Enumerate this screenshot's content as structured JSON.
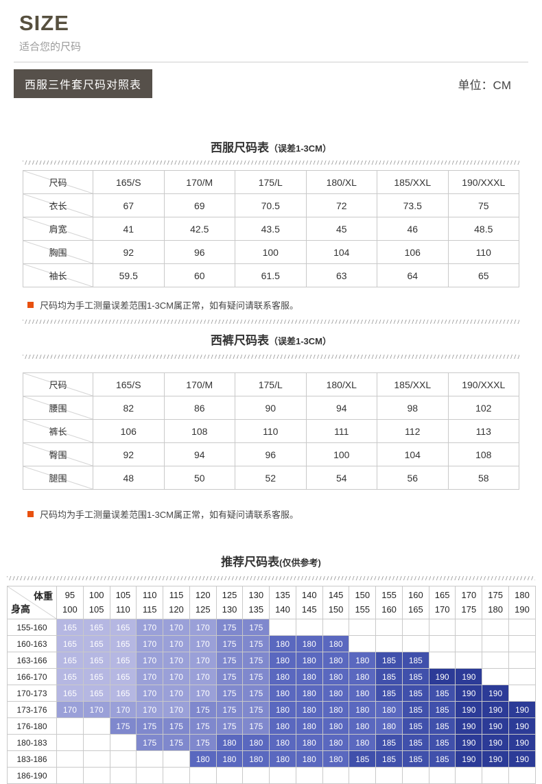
{
  "page": {
    "title": "SIZE",
    "subtitle": "适合您的尺码",
    "badge": "西服三件套尺码对照表",
    "unit": "单位：CM"
  },
  "suit_table": {
    "title": "西服尺码表",
    "title_note": "（误差1-3CM）",
    "corner_label": "尺码",
    "columns": [
      "165/S",
      "170/M",
      "175/L",
      "180/XL",
      "185/XXL",
      "190/XXXL"
    ],
    "rows": [
      {
        "label": "衣长",
        "values": [
          "67",
          "69",
          "70.5",
          "72",
          "73.5",
          "75"
        ]
      },
      {
        "label": "肩宽",
        "values": [
          "41",
          "42.5",
          "43.5",
          "45",
          "46",
          "48.5"
        ]
      },
      {
        "label": "胸围",
        "values": [
          "92",
          "96",
          "100",
          "104",
          "106",
          "110"
        ]
      },
      {
        "label": "袖长",
        "values": [
          "59.5",
          "60",
          "61.5",
          "63",
          "64",
          "65"
        ]
      }
    ],
    "note": "尺码均为手工测量误差范围1-3CM属正常，如有疑问请联系客服。"
  },
  "pants_table": {
    "title": "西裤尺码表",
    "title_note": "（误差1-3CM）",
    "corner_label": "尺码",
    "columns": [
      "165/S",
      "170/M",
      "175/L",
      "180/XL",
      "185/XXL",
      "190/XXXL"
    ],
    "rows": [
      {
        "label": "腰围",
        "values": [
          "82",
          "86",
          "90",
          "94",
          "98",
          "102"
        ]
      },
      {
        "label": "裤长",
        "values": [
          "106",
          "108",
          "110",
          "111",
          "112",
          "113"
        ]
      },
      {
        "label": "臀围",
        "values": [
          "92",
          "94",
          "96",
          "100",
          "104",
          "108"
        ]
      },
      {
        "label": "腿围",
        "values": [
          "48",
          "50",
          "52",
          "54",
          "56",
          "58"
        ]
      }
    ],
    "note": "尺码均为手工测量误差范围1-3CM属正常，如有疑问请联系客服。"
  },
  "recommend_table": {
    "title": "推荐尺码表",
    "title_note": "(仅供参考)",
    "corner_top": "体重",
    "corner_bottom": "身高",
    "weights": [
      [
        "95",
        "100"
      ],
      [
        "100",
        "105"
      ],
      [
        "105",
        "110"
      ],
      [
        "110",
        "115"
      ],
      [
        "115",
        "120"
      ],
      [
        "120",
        "125"
      ],
      [
        "125",
        "130"
      ],
      [
        "130",
        "135"
      ],
      [
        "135",
        "140"
      ],
      [
        "140",
        "145"
      ],
      [
        "145",
        "150"
      ],
      [
        "150",
        "155"
      ],
      [
        "155",
        "160"
      ],
      [
        "160",
        "165"
      ],
      [
        "165",
        "170"
      ],
      [
        "170",
        "175"
      ],
      [
        "175",
        "180"
      ],
      [
        "180",
        "190"
      ]
    ],
    "heights": [
      "155-160",
      "160-163",
      "163-166",
      "166-170",
      "170-173",
      "173-176",
      "176-180",
      "180-183",
      "183-186",
      "186-190"
    ],
    "matrix": [
      [
        "165",
        "165",
        "165",
        "170",
        "170",
        "170",
        "175",
        "175",
        "",
        "",
        "",
        "",
        "",
        "",
        "",
        "",
        "",
        ""
      ],
      [
        "165",
        "165",
        "165",
        "170",
        "170",
        "170",
        "175",
        "175",
        "180",
        "180",
        "180",
        "",
        "",
        "",
        "",
        "",
        "",
        ""
      ],
      [
        "165",
        "165",
        "165",
        "170",
        "170",
        "170",
        "175",
        "175",
        "180",
        "180",
        "180",
        "180",
        "185",
        "185",
        "",
        "",
        "",
        ""
      ],
      [
        "165",
        "165",
        "165",
        "170",
        "170",
        "170",
        "175",
        "175",
        "180",
        "180",
        "180",
        "180",
        "185",
        "185",
        "190",
        "190",
        "",
        ""
      ],
      [
        "165",
        "165",
        "165",
        "170",
        "170",
        "170",
        "175",
        "175",
        "180",
        "180",
        "180",
        "180",
        "185",
        "185",
        "185",
        "190",
        "190",
        ""
      ],
      [
        "170",
        "170",
        "170",
        "170",
        "170",
        "175",
        "175",
        "175",
        "180",
        "180",
        "180",
        "180",
        "180",
        "185",
        "185",
        "190",
        "190",
        "190"
      ],
      [
        "",
        "",
        "175",
        "175",
        "175",
        "175",
        "175",
        "175",
        "180",
        "180",
        "180",
        "180",
        "180",
        "185",
        "185",
        "190",
        "190",
        "190"
      ],
      [
        "",
        "",
        "",
        "175",
        "175",
        "175",
        "180",
        "180",
        "180",
        "180",
        "180",
        "180",
        "185",
        "185",
        "185",
        "190",
        "190",
        "190"
      ],
      [
        "",
        "",
        "",
        "",
        "",
        "180",
        "180",
        "180",
        "180",
        "180",
        "180",
        "185",
        "185",
        "185",
        "185",
        "190",
        "190",
        "190"
      ],
      [
        "",
        "",
        "",
        "",
        "",
        "",
        "",
        "",
        "",
        "",
        "",
        "",
        "",
        "",
        "",
        "",
        "",
        ""
      ]
    ],
    "size_colors": {
      "165": "#b5b7e2",
      "170": "#9aa0d8",
      "175": "#7f88cd",
      "180": "#5a68bf",
      "185": "#4050ab",
      "190": "#2c3b97"
    }
  }
}
